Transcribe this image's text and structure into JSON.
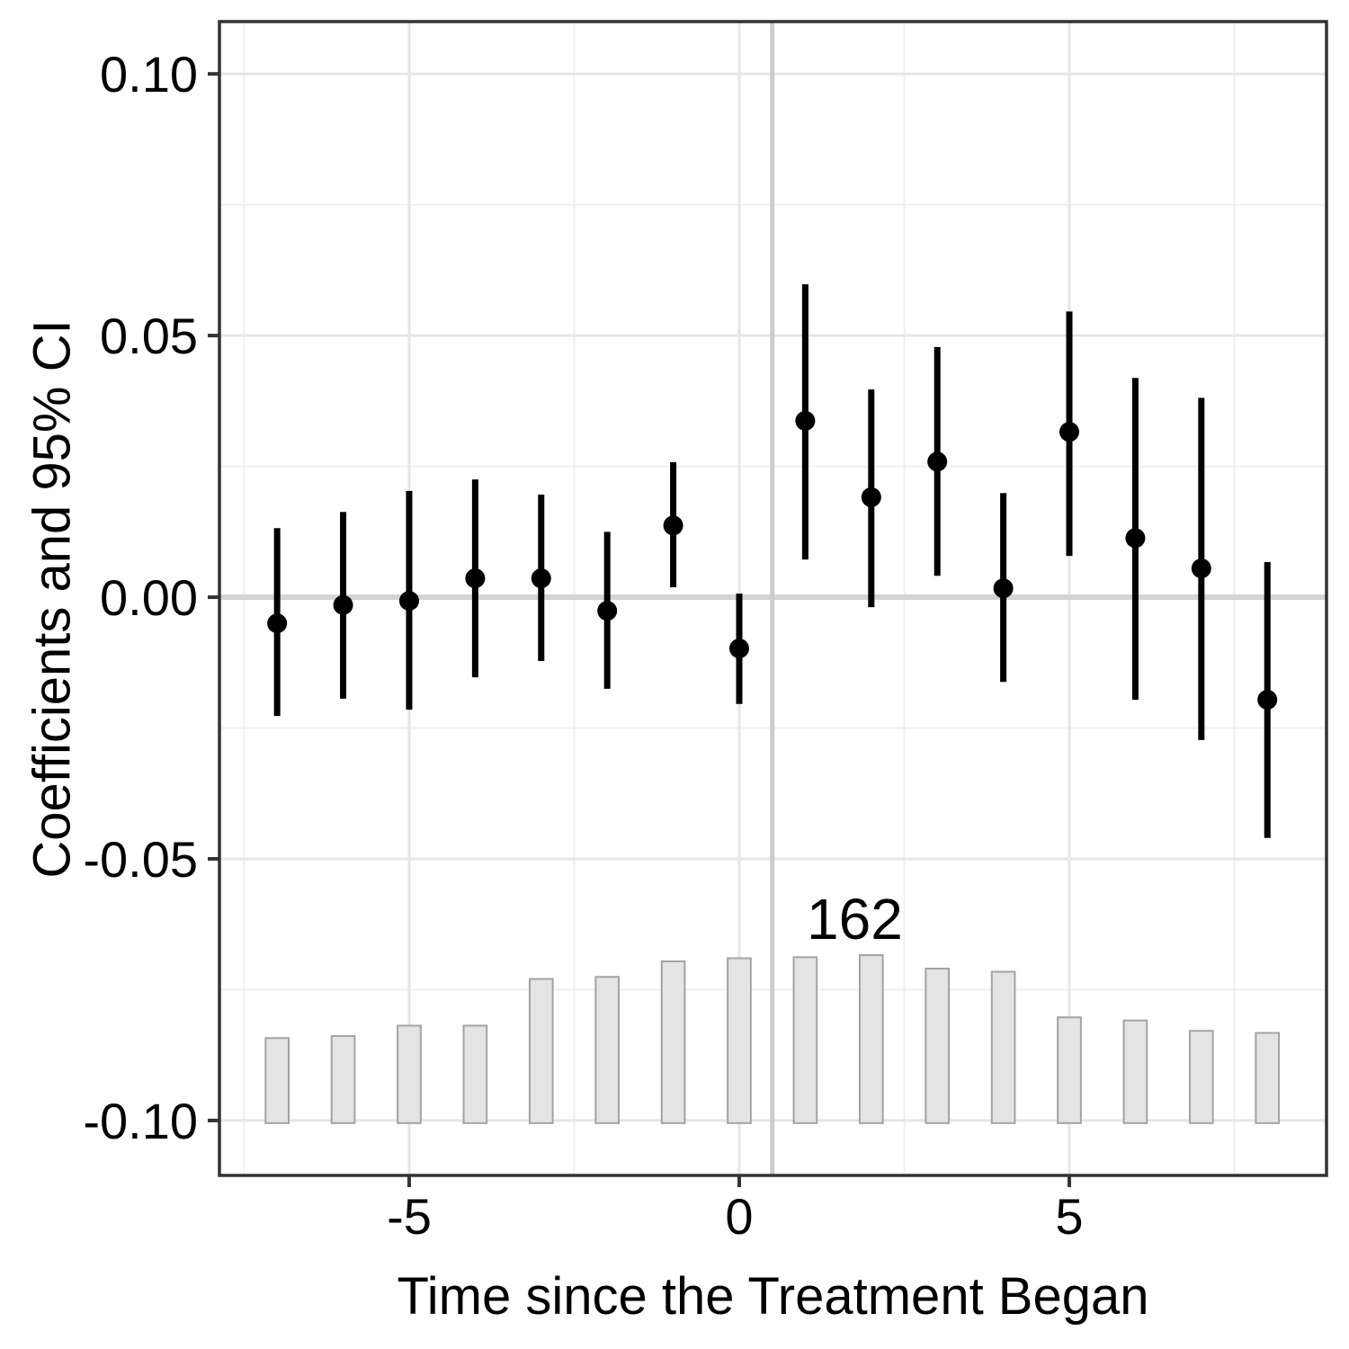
{
  "chart_data": {
    "type": "scatter",
    "subtype": "event-study pointrange with count histogram",
    "title": "",
    "xlabel": "Time since the Treatment Began",
    "ylabel": "Coefficients and 95% CI",
    "xlim": [
      -7.874,
      8.896
    ],
    "ylim": [
      -0.1105,
      0.11
    ],
    "x_ticks": [
      -5,
      0,
      5
    ],
    "x_tick_labels": [
      "-5",
      "0",
      "5"
    ],
    "y_ticks": [
      0.1,
      0.05,
      0.0,
      -0.05,
      -0.1
    ],
    "y_tick_labels": [
      "0.10",
      "0.05",
      "0.00",
      "-0.05",
      "-0.10"
    ],
    "x_minor_gridlines": [
      -7.5,
      -2.5,
      2.5,
      7.5
    ],
    "y_minor_gridlines": [
      0.075,
      0.025,
      -0.025,
      -0.075
    ],
    "grid": true,
    "legend": "none",
    "reference_lines": {
      "zero_hline_y": 0.0,
      "treatment_vline_x": 0.5
    },
    "annotation": {
      "text": "162",
      "x": 1.75,
      "y": -0.0615
    },
    "series": [
      {
        "name": "coefficients_95ci",
        "type": "pointrange",
        "x": [
          -7,
          -6,
          -5,
          -4,
          -3,
          -2,
          -1,
          0,
          1,
          2,
          3,
          4,
          5,
          6,
          7,
          8
        ],
        "est": [
          -0.005,
          -0.0015,
          -0.0007,
          0.0036,
          0.0036,
          -0.0026,
          0.0137,
          -0.0098,
          0.0337,
          0.0191,
          0.0259,
          0.0017,
          0.0316,
          0.0113,
          0.0055,
          -0.0196
        ],
        "lo": [
          -0.0227,
          -0.0194,
          -0.0215,
          -0.0153,
          -0.0122,
          -0.0175,
          0.0019,
          -0.0204,
          0.0072,
          -0.0019,
          0.0041,
          -0.0162,
          0.0079,
          -0.0196,
          -0.0273,
          -0.046
        ],
        "hi": [
          0.0132,
          0.0163,
          0.0203,
          0.0225,
          0.0196,
          0.0125,
          0.0258,
          0.0007,
          0.0598,
          0.0397,
          0.0478,
          0.0199,
          0.0546,
          0.0419,
          0.0381,
          0.0067
        ]
      },
      {
        "name": "treated_unit_counts",
        "type": "bar",
        "x": [
          -7,
          -6,
          -5,
          -4,
          -3,
          -2,
          -1,
          0,
          1,
          2,
          3,
          4,
          5,
          6,
          7,
          8
        ],
        "counts": [
          82,
          84,
          94,
          94,
          139,
          141,
          156,
          159,
          160,
          162,
          149,
          146,
          102,
          99,
          89,
          87
        ],
        "max_count": 162,
        "baseline_y": -0.1005,
        "height_at_max_in_y_units": 0.0321,
        "bar_width_in_x_units": 0.35
      }
    ],
    "colors": {
      "point": "#000000",
      "errorbar": "#000000",
      "bar_fill": "#e4e4e4",
      "bar_stroke": "#a3a3a3",
      "zero_line": "#d4d4d4",
      "treatment_line": "#cccccc",
      "grid_major": "#e6e6e6",
      "grid_minor": "#f0f0f0",
      "panel_border": "#333333",
      "tick_mark": "#333333",
      "tick_text": "#000000",
      "background": "#ffffff"
    }
  }
}
